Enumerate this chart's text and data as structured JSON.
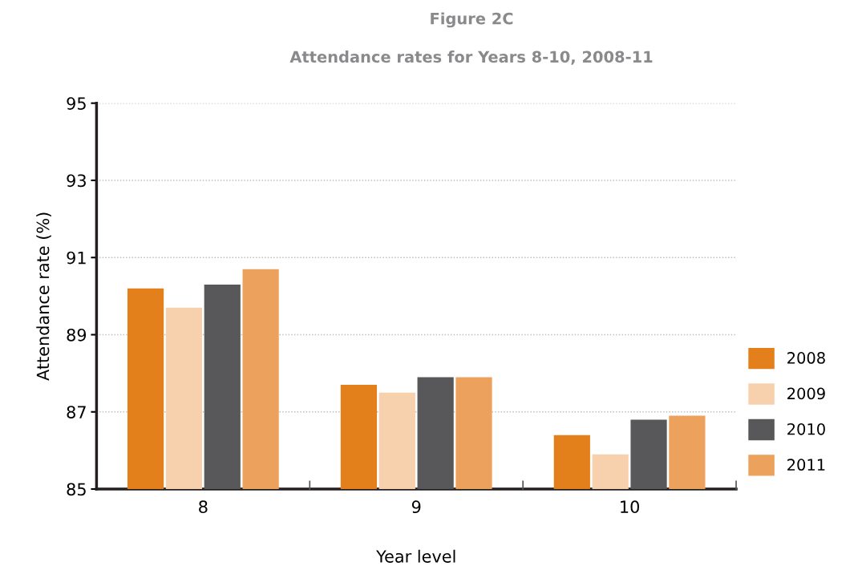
{
  "chart_data": {
    "type": "bar",
    "title": "Figure 2C",
    "subtitle": "Attendance rates for Years 8-10, 2008-11",
    "xlabel": "Year level",
    "ylabel": "Attendance rate (%)",
    "categories": [
      "8",
      "9",
      "10"
    ],
    "series": [
      {
        "name": "2008",
        "color": "#e3801c",
        "values": [
          90.2,
          87.7,
          86.4
        ]
      },
      {
        "name": "2009",
        "color": "#f7d1ad",
        "values": [
          89.7,
          87.5,
          85.9
        ]
      },
      {
        "name": "2010",
        "color": "#58585a",
        "values": [
          90.3,
          87.9,
          86.8
        ]
      },
      {
        "name": "2011",
        "color": "#eca15c",
        "values": [
          90.7,
          87.9,
          86.9
        ]
      }
    ],
    "ylim": [
      85,
      95
    ],
    "yticks": [
      85,
      87,
      89,
      91,
      93,
      95
    ],
    "grid": "y",
    "legend": "right"
  }
}
